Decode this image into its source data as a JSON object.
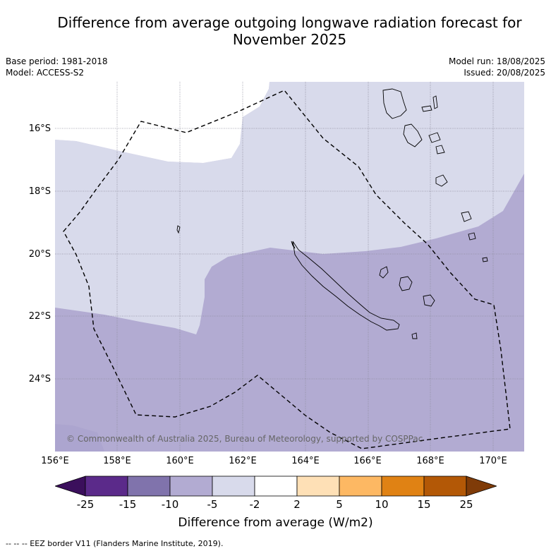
{
  "title_line1": "Difference from average outgoing longwave radiation forecast for",
  "title_line2": "November 2025",
  "base_period": "Base period: 1981-2018",
  "model": "Model: ACCESS-S2",
  "model_run": "Model run: 18/08/2025",
  "issued": "Issued: 20/08/2025",
  "copyright": "© Commonwealth of Australia 2025, Bureau of Meteorology, supported by COSPPac",
  "lat_labels": [
    "16°S",
    "18°S",
    "20°S",
    "22°S",
    "24°S"
  ],
  "lon_labels": [
    "156°E",
    "158°E",
    "160°E",
    "162°E",
    "164°E",
    "166°E",
    "168°E",
    "170°E"
  ],
  "colorbar": {
    "ticks": [
      "-25",
      "-15",
      "-10",
      "-5",
      "-2",
      "2",
      "5",
      "10",
      "15",
      "25"
    ],
    "colors": [
      "#3b0f5c",
      "#5b2a8a",
      "#8073ac",
      "#b2abd2",
      "#d8daeb",
      "#ffffff",
      "#fee0b6",
      "#fdb863",
      "#e08214",
      "#b35806",
      "#7f3b08"
    ],
    "label": "Difference from average (W/m2)"
  },
  "footer": "--  --  -- EEZ border V11 (Flanders Marine Institute, 2019)."
}
